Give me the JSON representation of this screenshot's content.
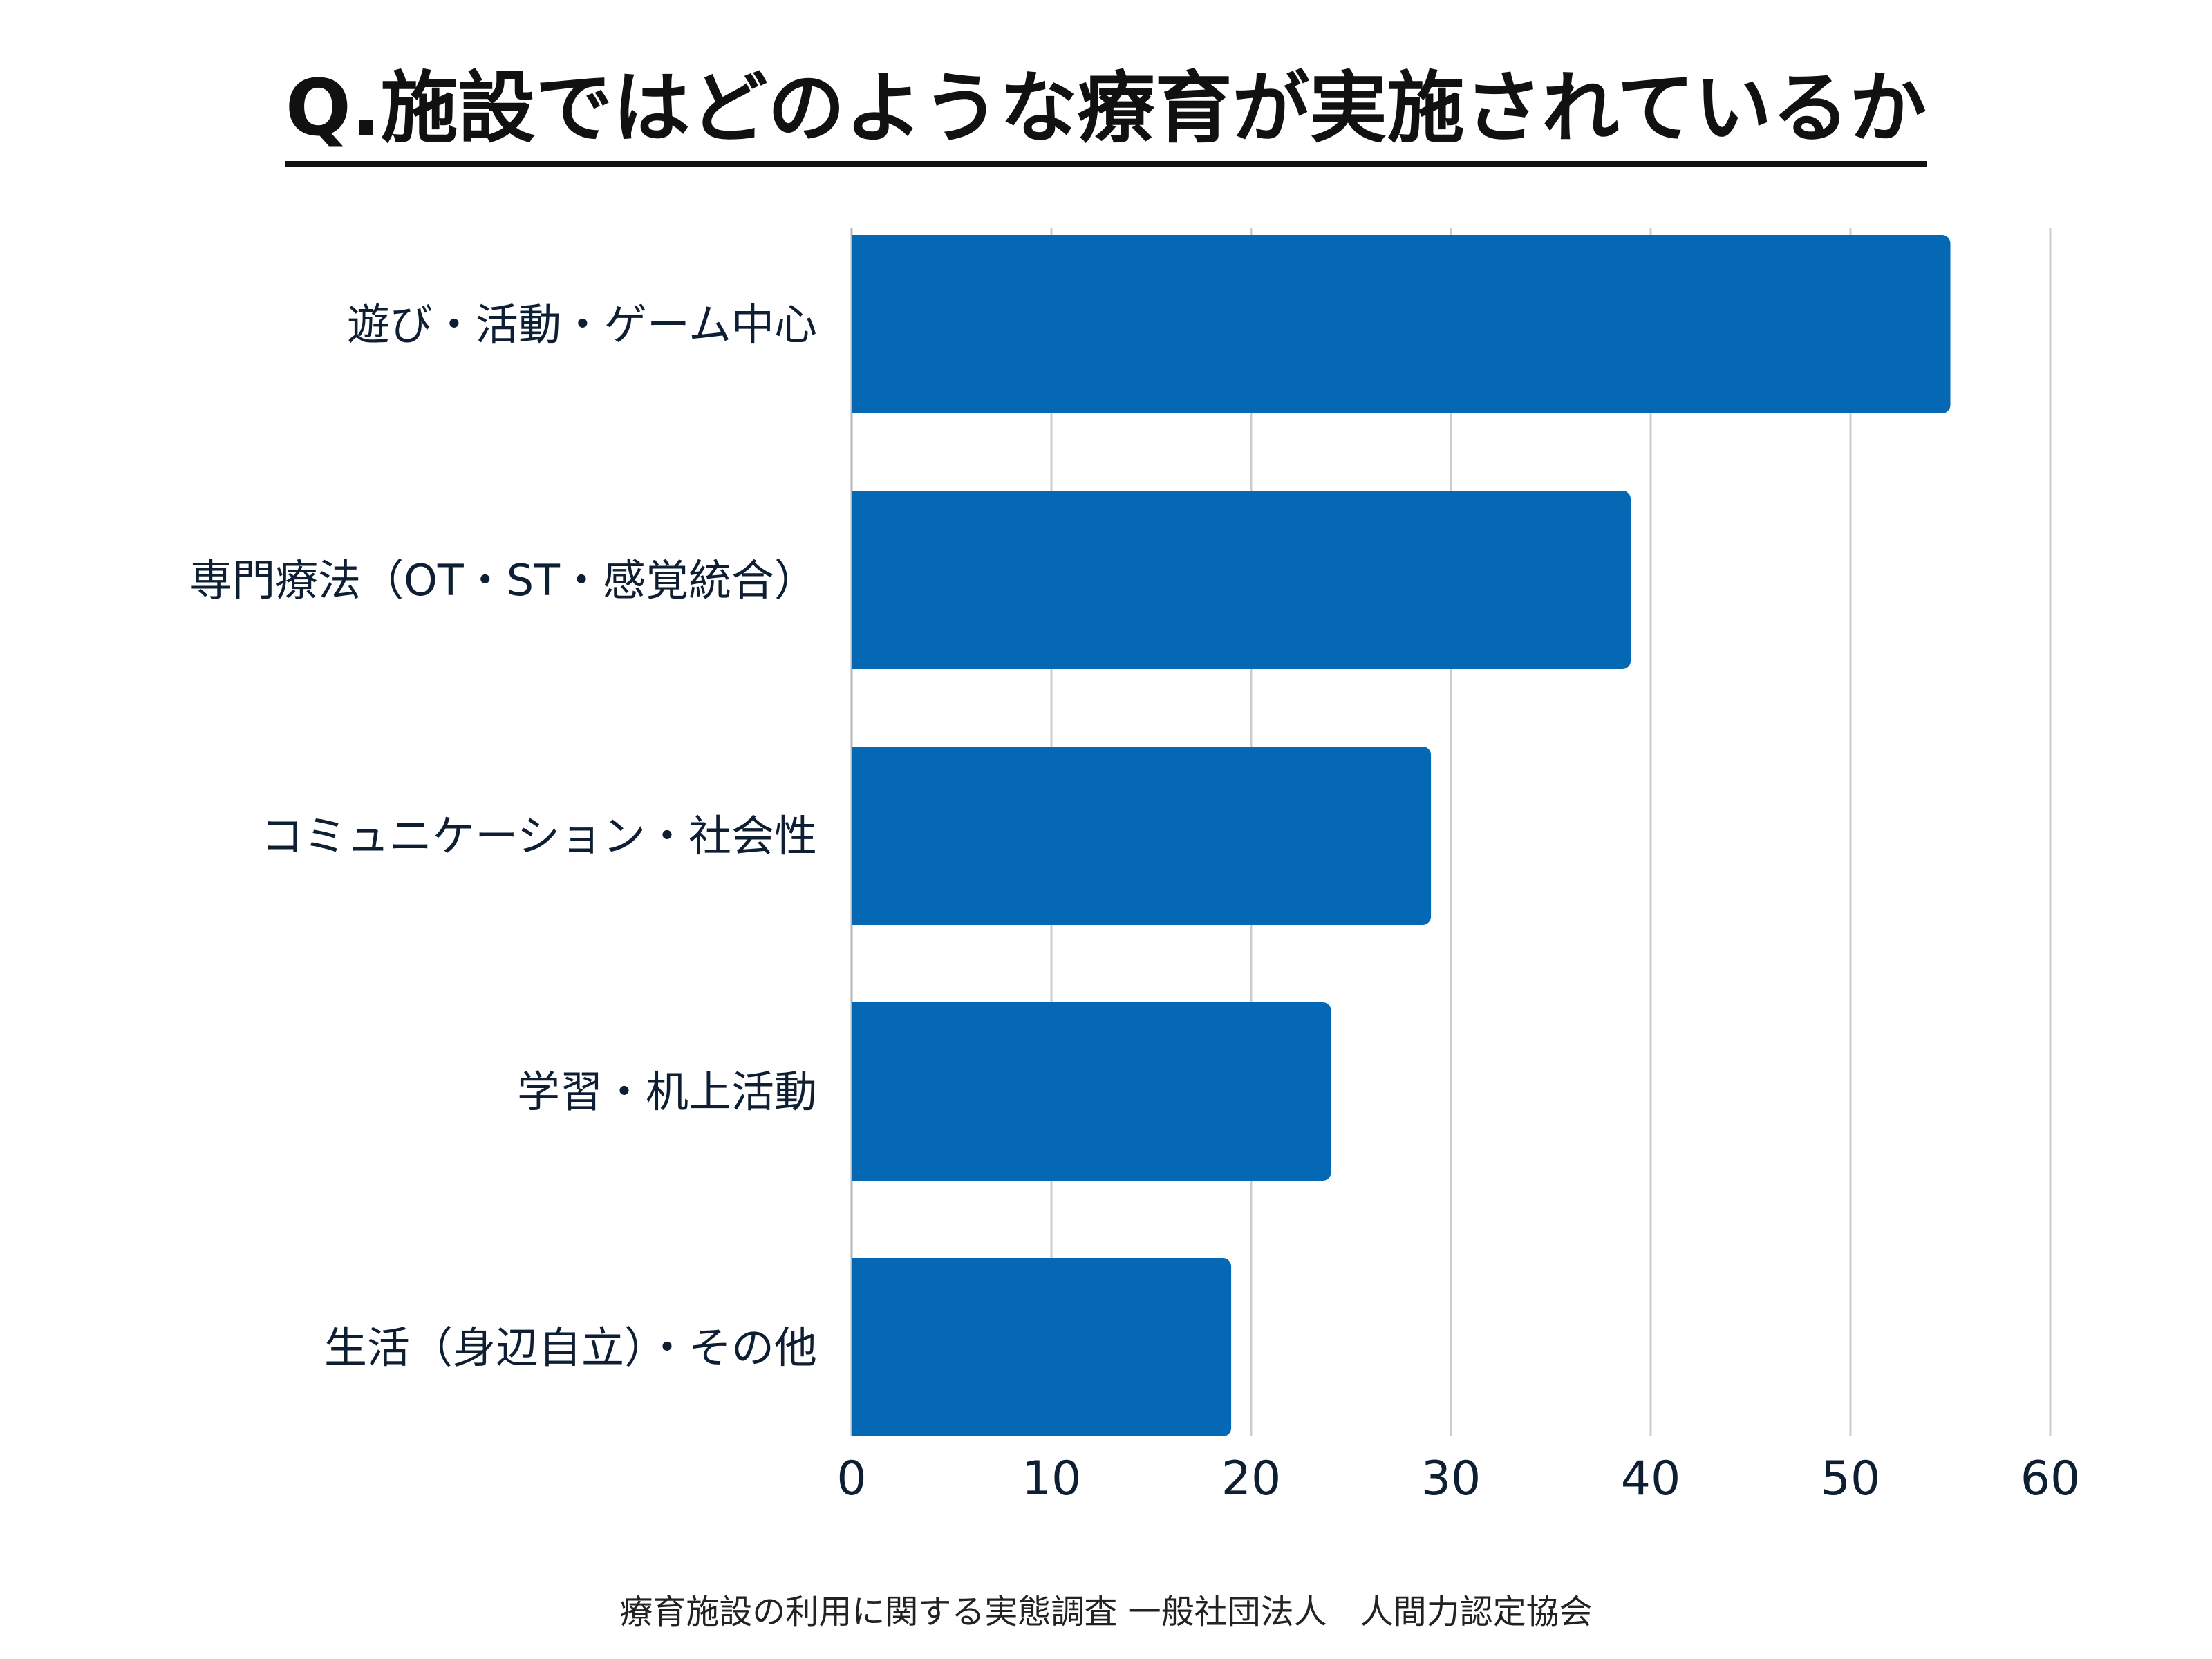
{
  "title": "Q.施設ではどのような療育が実施されているか",
  "source": "療育施設の利用に関する実態調査 一般社団法人　人間力認定協会",
  "colors": {
    "bar": "#0468b5",
    "grid": "#cccccc",
    "axis": "#b5b5b5",
    "text": "#0f1f33"
  },
  "chart_data": {
    "type": "bar",
    "orientation": "horizontal",
    "title": "Q.施設ではどのような療育が実施されているか",
    "categories": [
      "遊び・活動・ゲーム中心",
      "専門療法（OT・ST・感覚統合）",
      "コミュニケーション・社会性",
      "学習・机上活動",
      "生活（身辺自立）・その他"
    ],
    "values": [
      55,
      39,
      29,
      24,
      19
    ],
    "xlim": [
      0,
      60
    ],
    "xticks": [
      0,
      10,
      20,
      30,
      40,
      50,
      60
    ],
    "grid": true,
    "legend": "none"
  }
}
